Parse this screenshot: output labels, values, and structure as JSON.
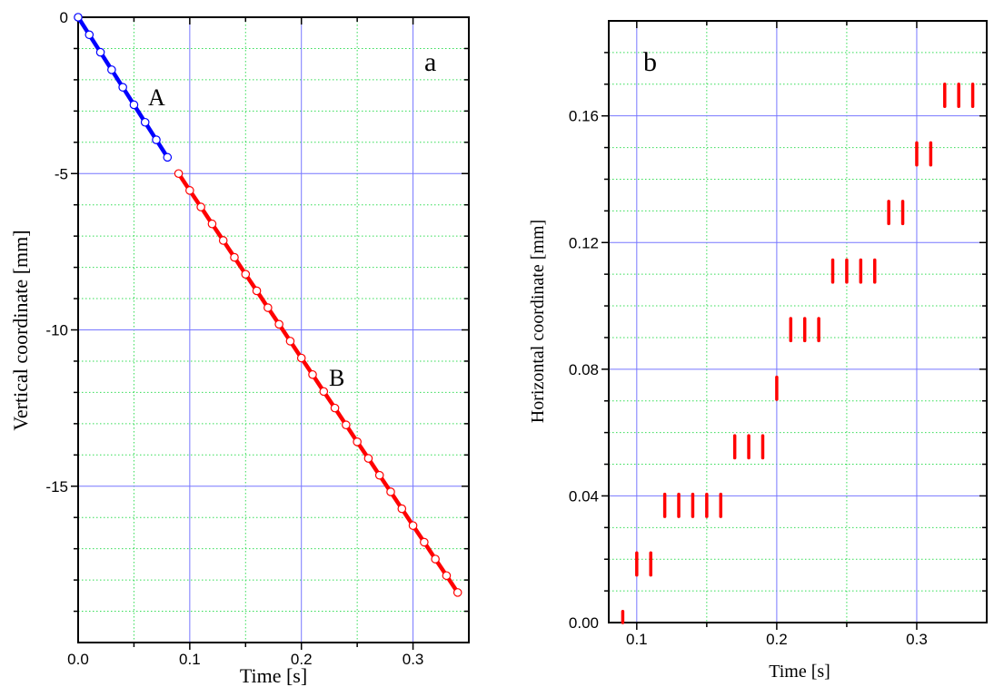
{
  "chart_data": [
    {
      "type": "scatter",
      "panel_label": "a",
      "xlabel": "Time [s]",
      "ylabel": "Vertical coordinate [mm]",
      "xlim": [
        0,
        0.35
      ],
      "ylim": [
        -20,
        0
      ],
      "xticks": [
        "0.0",
        "0.1",
        "0.2",
        "0.3"
      ],
      "yticks": [
        "0",
        "-5",
        "-10",
        "-15"
      ],
      "grid": true,
      "annotations": [
        "A",
        "B"
      ],
      "series": [
        {
          "label": "A",
          "color": "#0000ff",
          "x": [
            0,
            0.01,
            0.02,
            0.03,
            0.04,
            0.05,
            0.06,
            0.07,
            0.08
          ],
          "y": [
            0,
            -0.56,
            -1.12,
            -1.68,
            -2.24,
            -2.8,
            -3.36,
            -3.92,
            -4.48
          ]
        },
        {
          "label": "B",
          "color": "#ff0000",
          "x": [
            0.09,
            0.1,
            0.11,
            0.12,
            0.13,
            0.14,
            0.15,
            0.16,
            0.17,
            0.18,
            0.19,
            0.2,
            0.21,
            0.22,
            0.23,
            0.24,
            0.25,
            0.26,
            0.27,
            0.28,
            0.29,
            0.3,
            0.31,
            0.32,
            0.33,
            0.34
          ],
          "y": [
            -5.0,
            -5.54,
            -6.07,
            -6.61,
            -7.14,
            -7.68,
            -8.22,
            -8.75,
            -9.29,
            -9.82,
            -10.36,
            -10.9,
            -11.43,
            -11.97,
            -12.5,
            -13.04,
            -13.58,
            -14.11,
            -14.65,
            -15.18,
            -15.72,
            -16.26,
            -16.79,
            -17.33,
            -17.86,
            -18.4
          ]
        }
      ]
    },
    {
      "type": "scatter",
      "panel_label": "b",
      "xlabel": "Time [s]",
      "ylabel": "Horizontal coordinate [mm]",
      "xlim": [
        0.08,
        0.35
      ],
      "ylim": [
        0,
        0.19
      ],
      "xticks": [
        "0.1",
        "0.2",
        "0.3"
      ],
      "yticks": [
        "0.00",
        "0.04",
        "0.08",
        "0.12",
        "0.16"
      ],
      "grid": true,
      "marker": "vertical bar",
      "color": "#ff0000",
      "x": [
        0.09,
        0.1,
        0.11,
        0.12,
        0.13,
        0.14,
        0.15,
        0.16,
        0.17,
        0.18,
        0.19,
        0.2,
        0.21,
        0.22,
        0.23,
        0.24,
        0.25,
        0.26,
        0.27,
        0.28,
        0.29,
        0.3,
        0.31,
        0.32,
        0.33,
        0.34
      ],
      "y": [
        0.0,
        0.0185,
        0.0185,
        0.037,
        0.037,
        0.037,
        0.037,
        0.037,
        0.0555,
        0.0555,
        0.0555,
        0.074,
        0.0925,
        0.0925,
        0.0925,
        0.111,
        0.111,
        0.111,
        0.111,
        0.1295,
        0.1295,
        0.148,
        0.148,
        0.1665,
        0.1665,
        0.1665
      ]
    }
  ]
}
